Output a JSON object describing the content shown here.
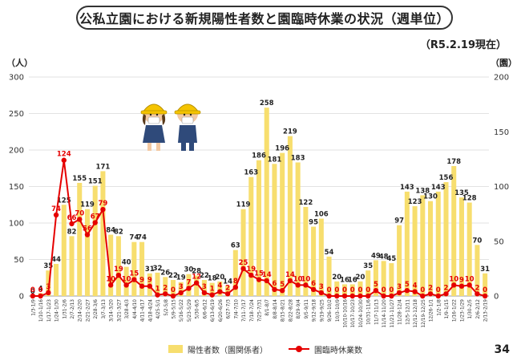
{
  "title": "公私立園における新規陽性者数と園臨時休業の状況（週単位）",
  "as_of": "（R5.2.19現在）",
  "page_number": "34",
  "y_left_unit": "（人）",
  "y_right_unit": "（園）",
  "colors": {
    "bar": "#f7de6e",
    "line": "#e50000",
    "bar_label": "#222222",
    "line_label": "#e50000"
  },
  "illustration": {
    "name": "two children wearing hard hats and face masks",
    "icon": "children-hardhat-icon"
  },
  "chart_data": {
    "type": "bar+line",
    "left_axis": {
      "ticks": [
        0,
        50,
        100,
        150,
        200,
        250,
        300
      ],
      "ylim": [
        0,
        300
      ]
    },
    "right_axis": {
      "ticks": [
        0,
        50,
        100,
        150,
        200
      ],
      "ylim": [
        0,
        200
      ]
    },
    "grid": true,
    "legend_position": "bottom-center",
    "categories": [
      "1/3-1/9",
      "1/10-1/16",
      "1/17-1/23",
      "1/24-1/30",
      "1/31-2/6",
      "2/7-2/13",
      "2/14-2/20",
      "2/21-2/27",
      "2/28-3/6",
      "3/7-3/13",
      "3/14-3/20",
      "3/21-3/27",
      "3/28-4/3",
      "4/4-4/10",
      "4/11-4/17",
      "4/18-4/24",
      "4/25-5/1",
      "5/2-5/8",
      "5/9-5/15",
      "5/16-5/22",
      "5/23-5/29",
      "5/30-6/5",
      "6/6-6/12",
      "6/13-6/19",
      "6/20-6/26",
      "6/27-7/3",
      "7/4-7/10",
      "7/11-7/17",
      "7/18-7/24",
      "7/25-7/31",
      "8/1-8/7",
      "8/8-8/14",
      "8/15-8/21",
      "8/22-8/28",
      "8/29-9/4",
      "9/5-9/11",
      "9/12-9/18",
      "9/19-9/25",
      "9/26-10/2",
      "10/3-10/9",
      "10/10-10/16",
      "10/17-10/23",
      "10/24-10/30",
      "10/31-11/6",
      "11/7-11/13",
      "11/14-11/20",
      "11/21-11/27",
      "11/28-12/4",
      "12/5-12/11",
      "12/12-12/18",
      "12/19-12/25",
      "12/26-1/1",
      "1/2-1/8",
      "1/9-1/15",
      "1/16-1/22",
      "1/23-1/29",
      "1/30-2/5",
      "2/6-2/12",
      "2/13-2/19"
    ],
    "series": [
      {
        "name": "陽性者数（園関係者）",
        "kind": "bar",
        "axis": "left",
        "values": [
          0,
          4,
          35,
          44,
          125,
          82,
          155,
          119,
          151,
          171,
          84,
          82,
          40,
          74,
          74,
          31,
          32,
          26,
          22,
          19,
          30,
          28,
          22,
          18,
          20,
          14,
          63,
          119,
          163,
          186,
          258,
          181,
          196,
          219,
          183,
          122,
          95,
          106,
          54,
          20,
          16,
          16,
          20,
          35,
          49,
          48,
          45,
          97,
          143,
          123,
          138,
          130,
          143,
          156,
          178,
          135,
          128,
          70,
          31
        ]
      },
      {
        "name": "園臨時休業数",
        "kind": "line",
        "axis": "right",
        "values": [
          0,
          0,
          3,
          74,
          124,
          66,
          70,
          56,
          67,
          79,
          10,
          19,
          10,
          15,
          9,
          9,
          1,
          2,
          0,
          3,
          7,
          12,
          3,
          1,
          4,
          2,
          8,
          25,
          19,
          15,
          14,
          6,
          5,
          14,
          10,
          10,
          6,
          3,
          0,
          0,
          0,
          0,
          0,
          0,
          5,
          0,
          0,
          3,
          5,
          4,
          0,
          2,
          0,
          2,
          10,
          9,
          10,
          2,
          0
        ],
        "labels": [
          "0",
          "0",
          "3",
          "74",
          "124",
          "66",
          "70",
          "56",
          "67",
          "79",
          "10",
          "19",
          "10",
          "15",
          "9",
          "9",
          "1",
          "2",
          "0",
          "3",
          "7",
          "12",
          "3",
          "1",
          "4",
          "2",
          "8",
          "25",
          "19",
          "15",
          "14",
          "6",
          "5",
          "14",
          "10",
          "10",
          "6",
          "3",
          "0",
          "0",
          "0",
          "0",
          "0",
          "0",
          "5",
          "0",
          "0",
          "3",
          "5",
          "4",
          "0",
          "2",
          "0",
          "2",
          "10",
          "9",
          "10",
          "2",
          "0"
        ]
      }
    ]
  }
}
